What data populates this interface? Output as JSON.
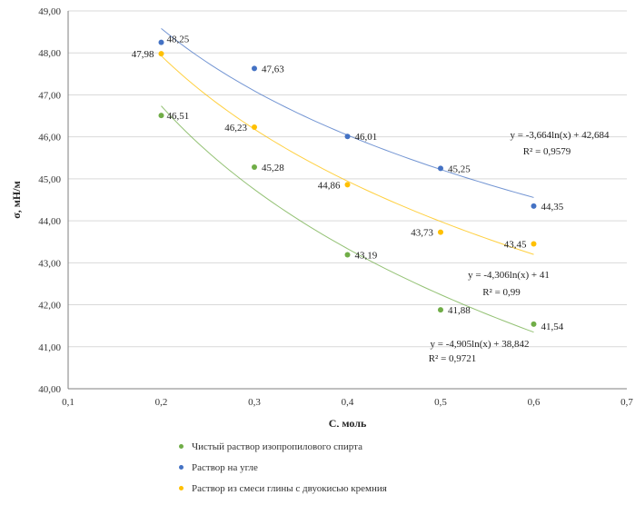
{
  "chart_data": {
    "type": "scatter",
    "xlabel": "C, моль",
    "ylabel": "σ, мН/м",
    "xlim": [
      0.1,
      0.7
    ],
    "ylim": [
      40,
      49
    ],
    "x_ticks": [
      "0,1",
      "0,2",
      "0,3",
      "0,4",
      "0,5",
      "0,6",
      "0,7"
    ],
    "y_ticks": [
      "40,00",
      "41,00",
      "42,00",
      "43,00",
      "44,00",
      "45,00",
      "46,00",
      "47,00",
      "48,00",
      "49,00"
    ],
    "grid": "horizontal",
    "legend_position": "bottom",
    "series": [
      {
        "name": "Чистый раствор изопропилового спирта",
        "color": "#70ad47",
        "x": [
          0.2,
          0.3,
          0.4,
          0.5,
          0.6
        ],
        "values": [
          46.51,
          45.28,
          43.19,
          41.88,
          41.54
        ],
        "labels": [
          "46,51",
          "45,28",
          "43,19",
          "41,88",
          "41,54"
        ],
        "trendline": {
          "type": "log",
          "a": -4.905,
          "b": 38.842
        },
        "equation": "y = -4,905ln(x) + 38,842",
        "r2": "R² = 0,9721"
      },
      {
        "name": "Раствор на угле",
        "color": "#4472c4",
        "x": [
          0.2,
          0.3,
          0.4,
          0.5,
          0.6
        ],
        "values": [
          48.25,
          47.63,
          46.01,
          45.25,
          44.35
        ],
        "labels": [
          "48,25",
          "47,63",
          "46,01",
          "45,25",
          "44,35"
        ],
        "trendline": {
          "type": "log",
          "a": -3.664,
          "b": 42.684
        },
        "equation": "y = -3,664ln(x) + 42,684",
        "r2": "R² = 0,9579"
      },
      {
        "name": "Раствор из смеси глины с двуокисью кремния",
        "color": "#ffc000",
        "x": [
          0.2,
          0.3,
          0.4,
          0.5,
          0.6
        ],
        "values": [
          47.98,
          46.23,
          44.86,
          43.73,
          43.45
        ],
        "labels": [
          "47,98",
          "46,23",
          "44,86",
          "43,73",
          "43,45"
        ],
        "trendline": {
          "type": "log",
          "a": -4.306,
          "b": 41
        },
        "equation": "y = -4,306ln(x) + 41",
        "r2": "R² = 0,99"
      }
    ]
  }
}
